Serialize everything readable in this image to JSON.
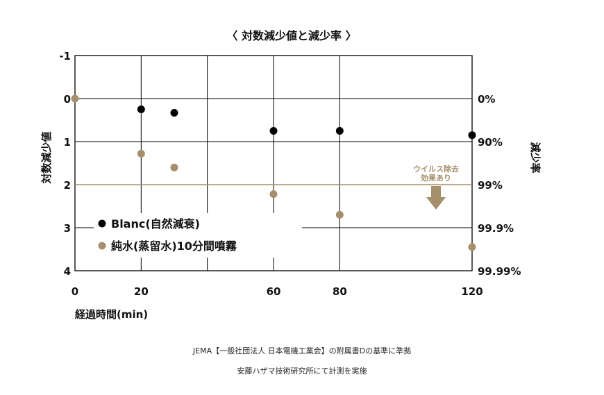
{
  "chart_data": {
    "type": "scatter",
    "title": "〈 対数減少値と減少率 〉",
    "xlabel": "経過時間(min)",
    "ylabel": "対数減少値",
    "y2label": "減少率",
    "x_ticks": [
      0,
      20,
      60,
      80,
      120
    ],
    "x_gridlines": [
      20,
      40,
      60,
      80
    ],
    "xlim": [
      0,
      120
    ],
    "y_ticks": [
      -1,
      0,
      1,
      2,
      3,
      4
    ],
    "ylim": [
      -1,
      4
    ],
    "y_inverted": true,
    "y2_ticks": [
      {
        "y": 0,
        "label": "0%"
      },
      {
        "y": 1,
        "label": "90%"
      },
      {
        "y": 2,
        "label": "99%"
      },
      {
        "y": 3,
        "label": "99.9%"
      },
      {
        "y": 4,
        "label": "99.99%"
      }
    ],
    "threshold": {
      "y": 2,
      "color": "#a68f6c"
    },
    "annotation": {
      "lines": [
        "ウイルス除去",
        "効果あり"
      ],
      "color": "#a68f6c",
      "arrow": "down"
    },
    "series": [
      {
        "name": "Blanc(自然減衰)",
        "color": "#000000",
        "x": [
          20,
          30,
          60,
          80,
          120
        ],
        "y": [
          0.25,
          0.33,
          0.75,
          0.75,
          0.85
        ]
      },
      {
        "name": "純水(蒸留水)10分間噴霧",
        "color": "#a68f6c",
        "x": [
          0,
          20,
          30,
          60,
          80,
          120
        ],
        "y": [
          0,
          1.28,
          1.6,
          2.22,
          2.7,
          3.45
        ]
      }
    ],
    "legend_position": "bottom-left"
  },
  "footnote": {
    "line1": "JEMA【一般社団法人 日本電機工業会】の附属書Dの基準に準拠",
    "line2": "安藤ハザマ技術研究所にて計測を実施"
  }
}
